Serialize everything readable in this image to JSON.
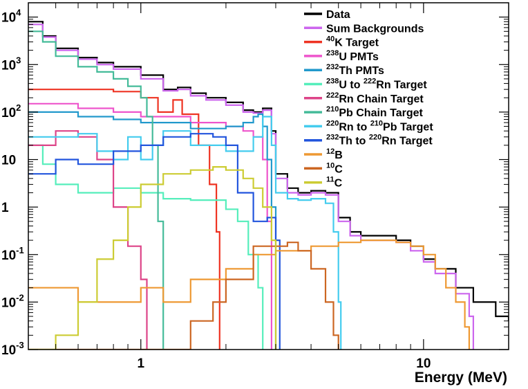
{
  "chart_data": {
    "type": "line",
    "title": "",
    "xlabel": "Energy (MeV)",
    "ylabel": "",
    "x_scale": "log",
    "y_scale": "log",
    "xlim": [
      0.4,
      20
    ],
    "ylim": [
      0.001,
      20000
    ],
    "grid": false,
    "legend_position": "top-right",
    "x_ticks": [
      {
        "value": 1,
        "label": "1"
      },
      {
        "value": 10,
        "label": "10"
      }
    ],
    "y_ticks": [
      {
        "value": 0.001,
        "base": "10",
        "exp": "-3"
      },
      {
        "value": 0.01,
        "base": "10",
        "exp": "-2"
      },
      {
        "value": 0.1,
        "base": "10",
        "exp": "-1"
      },
      {
        "value": 1,
        "base": "1",
        "exp": ""
      },
      {
        "value": 10,
        "base": "10",
        "exp": ""
      },
      {
        "value": 100,
        "base": "10",
        "exp": "2"
      },
      {
        "value": 1000,
        "base": "10",
        "exp": "3"
      },
      {
        "value": 10000,
        "base": "10",
        "exp": "4"
      }
    ],
    "series": [
      {
        "name": "Data",
        "color": "#000000",
        "points": [
          [
            0.4,
            8000
          ],
          [
            0.45,
            4000
          ],
          [
            0.5,
            2200
          ],
          [
            0.6,
            1400
          ],
          [
            0.7,
            1100
          ],
          [
            0.8,
            900
          ],
          [
            1.0,
            600
          ],
          [
            1.2,
            300
          ],
          [
            1.35,
            330
          ],
          [
            1.5,
            250
          ],
          [
            1.7,
            200
          ],
          [
            2.0,
            160
          ],
          [
            2.3,
            110
          ],
          [
            2.5,
            100
          ],
          [
            2.7,
            120
          ],
          [
            2.9,
            40
          ],
          [
            3.0,
            5
          ],
          [
            3.3,
            2.5
          ],
          [
            3.6,
            2
          ],
          [
            4.0,
            2.2
          ],
          [
            4.5,
            2
          ],
          [
            5.0,
            0.6
          ],
          [
            5.5,
            0.3
          ],
          [
            6,
            0.25
          ],
          [
            7,
            0.25
          ],
          [
            8,
            0.2
          ],
          [
            9,
            0.15
          ],
          [
            10,
            0.08
          ],
          [
            11,
            0.05
          ],
          [
            13,
            0.02
          ],
          [
            15,
            0.01
          ],
          [
            18,
            0.005
          ],
          [
            20,
            0.004
          ]
        ]
      },
      {
        "name": "Sum Backgrounds",
        "color": "#cc66ee",
        "points": [
          [
            0.4,
            7000
          ],
          [
            0.45,
            3800
          ],
          [
            0.5,
            2000
          ],
          [
            0.6,
            1300
          ],
          [
            0.7,
            1000
          ],
          [
            0.8,
            800
          ],
          [
            1.0,
            500
          ],
          [
            1.2,
            280
          ],
          [
            1.35,
            300
          ],
          [
            1.5,
            220
          ],
          [
            1.7,
            180
          ],
          [
            2.0,
            140
          ],
          [
            2.3,
            100
          ],
          [
            2.5,
            95
          ],
          [
            2.7,
            110
          ],
          [
            2.9,
            35
          ],
          [
            3.0,
            4
          ],
          [
            3.3,
            2
          ],
          [
            3.6,
            1.8
          ],
          [
            4.0,
            2
          ],
          [
            4.5,
            1.8
          ],
          [
            5.0,
            0.5
          ],
          [
            5.5,
            0.25
          ],
          [
            6,
            0.2
          ],
          [
            7,
            0.2
          ],
          [
            8,
            0.18
          ],
          [
            9,
            0.12
          ],
          [
            10,
            0.07
          ],
          [
            11,
            0.04
          ],
          [
            13,
            0.015
          ],
          [
            14.5,
            0.005
          ],
          [
            15,
            0.001
          ]
        ]
      },
      {
        "name": "K Target",
        "sup": "40",
        "color": "#ee3322",
        "points": [
          [
            0.4,
            300
          ],
          [
            0.6,
            300
          ],
          [
            0.8,
            270
          ],
          [
            1.0,
            200
          ],
          [
            1.15,
            100
          ],
          [
            1.3,
            180
          ],
          [
            1.4,
            90
          ],
          [
            1.6,
            20
          ],
          [
            1.75,
            3
          ],
          [
            1.85,
            0.3
          ],
          [
            1.9,
            0.001
          ]
        ]
      },
      {
        "name": "U PMTs",
        "sup": "238",
        "color": "#ee55cc",
        "points": [
          [
            0.4,
            150
          ],
          [
            0.6,
            120
          ],
          [
            0.8,
            100
          ],
          [
            1.0,
            80
          ],
          [
            1.5,
            60
          ],
          [
            2.0,
            50
          ],
          [
            2.3,
            40
          ],
          [
            2.5,
            30
          ],
          [
            2.7,
            10
          ],
          [
            2.8,
            0.5
          ],
          [
            2.9,
            0.001
          ]
        ]
      },
      {
        "name": "Th PMTs",
        "sup": "232",
        "color": "#2299cc",
        "points": [
          [
            0.4,
            100
          ],
          [
            0.6,
            80
          ],
          [
            0.8,
            70
          ],
          [
            1.0,
            60
          ],
          [
            1.5,
            45
          ],
          [
            2.0,
            50
          ],
          [
            2.3,
            60
          ],
          [
            2.5,
            80
          ],
          [
            2.6,
            90
          ],
          [
            2.7,
            50
          ],
          [
            2.8,
            10
          ],
          [
            2.9,
            1
          ],
          [
            3.0,
            0.001
          ]
        ]
      },
      {
        "name": "U to Rn Target",
        "sup": "238",
        "sup2": "222",
        "color": "#55eebb",
        "points": [
          [
            0.4,
            20
          ],
          [
            0.45,
            8
          ],
          [
            0.5,
            3
          ],
          [
            0.6,
            2
          ],
          [
            0.7,
            2
          ],
          [
            0.8,
            2.5
          ],
          [
            1.0,
            2
          ],
          [
            1.2,
            1.5
          ],
          [
            1.5,
            1.4
          ],
          [
            2.0,
            0.9
          ],
          [
            2.2,
            0.5
          ],
          [
            2.4,
            0.1
          ],
          [
            2.6,
            0.02
          ],
          [
            2.7,
            0.001
          ]
        ]
      },
      {
        "name": "Rn Chain Target",
        "sup": "222",
        "color": "#dd4488",
        "points": [
          [
            0.4,
            20
          ],
          [
            0.5,
            40
          ],
          [
            0.6,
            30
          ],
          [
            0.7,
            10
          ],
          [
            0.8,
            1
          ],
          [
            0.9,
            0.15
          ],
          [
            1.0,
            0.03
          ],
          [
            1.05,
            0.001
          ]
        ]
      },
      {
        "name": "Pb Chain Target",
        "sup": "210",
        "color": "#44bb99",
        "points": [
          [
            0.4,
            5000
          ],
          [
            0.45,
            3000
          ],
          [
            0.5,
            1500
          ],
          [
            0.6,
            900
          ],
          [
            0.7,
            700
          ],
          [
            0.8,
            500
          ],
          [
            0.9,
            350
          ],
          [
            1.0,
            200
          ],
          [
            1.05,
            80
          ],
          [
            1.1,
            20
          ],
          [
            1.15,
            0.5
          ],
          [
            1.2,
            0.001
          ]
        ]
      },
      {
        "name": "Rn to Pb Target",
        "sup": "220",
        "sup2": "210",
        "color": "#44ccee",
        "points": [
          [
            0.4,
            30
          ],
          [
            0.6,
            35
          ],
          [
            0.7,
            15
          ],
          [
            0.8,
            10
          ],
          [
            0.9,
            30
          ],
          [
            1.0,
            10
          ],
          [
            1.1,
            20
          ],
          [
            1.2,
            40
          ],
          [
            1.5,
            20
          ],
          [
            2.0,
            15
          ],
          [
            2.5,
            30
          ],
          [
            2.7,
            80
          ],
          [
            2.9,
            20
          ],
          [
            3.0,
            2
          ],
          [
            3.3,
            1.5
          ],
          [
            3.6,
            1.4
          ],
          [
            4.0,
            1.5
          ],
          [
            4.5,
            1.2
          ],
          [
            4.8,
            0.3
          ],
          [
            5.0,
            0.01
          ],
          [
            5.1,
            0.001
          ]
        ]
      },
      {
        "name": "Th to Rn Target",
        "sup": "232",
        "sup2": "220",
        "color": "#2255dd",
        "points": [
          [
            0.4,
            5
          ],
          [
            0.5,
            10
          ],
          [
            0.6,
            8
          ],
          [
            0.8,
            15
          ],
          [
            1.0,
            20
          ],
          [
            1.2,
            30
          ],
          [
            1.5,
            35
          ],
          [
            1.8,
            30
          ],
          [
            2.0,
            20
          ],
          [
            2.2,
            2
          ],
          [
            2.5,
            0.5
          ],
          [
            2.8,
            0.6
          ],
          [
            3.0,
            0.2
          ],
          [
            3.1,
            0.001
          ]
        ]
      },
      {
        "name": "B",
        "sup": "12",
        "color": "#ee9933",
        "points": [
          [
            0.4,
            0.02
          ],
          [
            0.6,
            0.01
          ],
          [
            0.8,
            0.01
          ],
          [
            1.0,
            0.02
          ],
          [
            1.2,
            0.01
          ],
          [
            1.5,
            0.03
          ],
          [
            2.0,
            0.05
          ],
          [
            2.5,
            0.1
          ],
          [
            3.0,
            0.12
          ],
          [
            4.0,
            0.15
          ],
          [
            5.0,
            0.18
          ],
          [
            6.0,
            0.2
          ],
          [
            8.0,
            0.18
          ],
          [
            9.0,
            0.15
          ],
          [
            10,
            0.1
          ],
          [
            11,
            0.05
          ],
          [
            12,
            0.02
          ],
          [
            13,
            0.01
          ],
          [
            14,
            0.003
          ],
          [
            14.5,
            0.001
          ]
        ]
      },
      {
        "name": "C",
        "sup": "10",
        "color": "#cc6622",
        "points": [
          [
            0.4,
            0.001
          ],
          [
            1.5,
            0.004
          ],
          [
            1.8,
            0.01
          ],
          [
            2.0,
            0.03
          ],
          [
            2.5,
            0.15
          ],
          [
            3.0,
            0.15
          ],
          [
            3.3,
            0.18
          ],
          [
            3.6,
            0.12
          ],
          [
            4.0,
            0.05
          ],
          [
            4.5,
            0.01
          ],
          [
            4.8,
            0.002
          ],
          [
            5.0,
            0.001
          ]
        ]
      },
      {
        "name": "C",
        "sup": "11",
        "color": "#cccc33",
        "points": [
          [
            0.4,
            0.001
          ],
          [
            0.5,
            0.002
          ],
          [
            0.6,
            0.01
          ],
          [
            0.7,
            0.08
          ],
          [
            0.8,
            0.2
          ],
          [
            0.9,
            1
          ],
          [
            1.0,
            3
          ],
          [
            1.2,
            5
          ],
          [
            1.5,
            6
          ],
          [
            1.8,
            7
          ],
          [
            2.0,
            6
          ],
          [
            2.3,
            4
          ],
          [
            2.5,
            2.5
          ],
          [
            2.7,
            1
          ],
          [
            2.9,
            0.2
          ],
          [
            3.0,
            0.001
          ]
        ]
      }
    ]
  }
}
